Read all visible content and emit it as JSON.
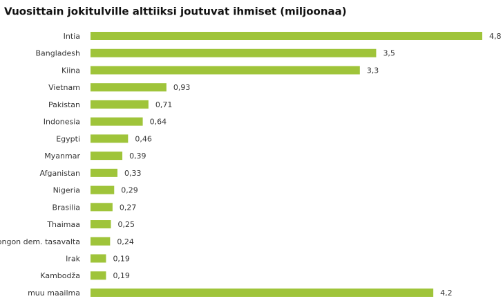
{
  "chart_data": {
    "type": "barh",
    "title": "Vuosittain jokitulville alttiiksi joutuvat ihmiset (miljoonaa)",
    "categories": [
      "Intia",
      "Bangladesh",
      "Kiina",
      "Vietnam",
      "Pakistan",
      "Indonesia",
      "Egypti",
      "Myanmar",
      "Afganistan",
      "Nigeria",
      "Brasilia",
      "Thaimaa",
      "Kongon dem. tasavalta",
      "Irak",
      "Kambodža",
      "muu maailma"
    ],
    "values": [
      4.8,
      3.5,
      3.3,
      0.93,
      0.71,
      0.64,
      0.46,
      0.39,
      0.33,
      0.29,
      0.27,
      0.25,
      0.24,
      0.19,
      0.19,
      4.2
    ],
    "value_labels": [
      "4,8",
      "3,5",
      "3,3",
      "0,93",
      "0,71",
      "0,64",
      "0,46",
      "0,39",
      "0,33",
      "0,29",
      "0,27",
      "0,25",
      "0,24",
      "0,19",
      "0,19",
      "4,2"
    ],
    "color": "#9fc43a",
    "xlim": [
      0,
      4.8
    ]
  }
}
